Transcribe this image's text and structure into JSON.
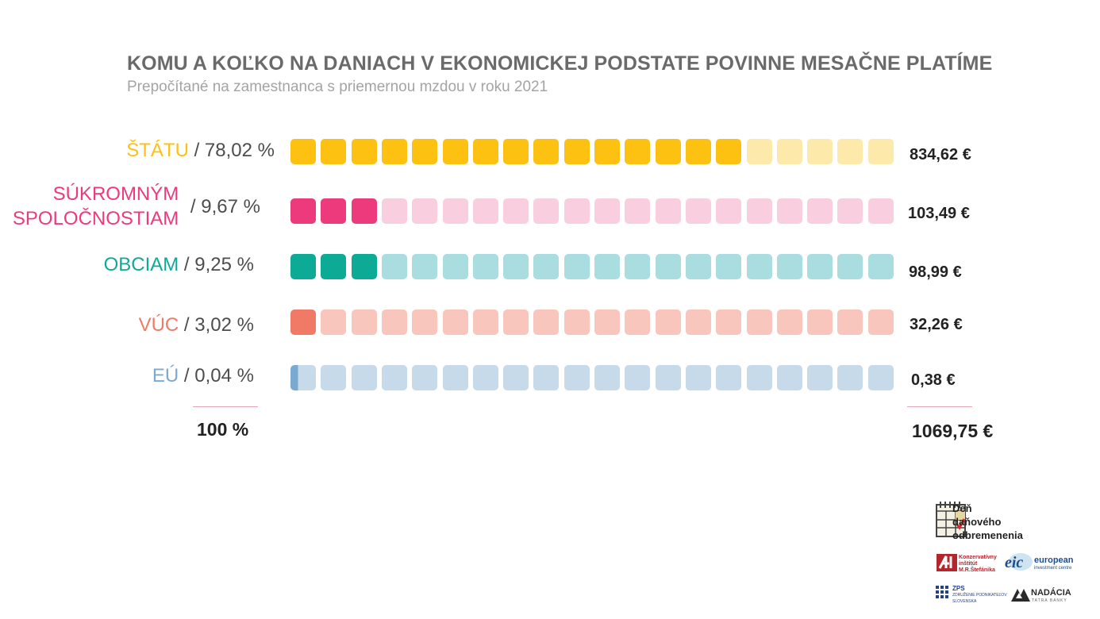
{
  "title": "KOMU A KOĽKO NA DANIACH V EKONOMICKEJ PODSTATE POVINNE MESAČNE PLATÍME",
  "subtitle": "Prepočítané na zamestnanca s priemernou mzdou v roku 2021",
  "chart_data": {
    "type": "bar",
    "title": "KOMU A KOĽKO NA DANIACH V EKONOMICKEJ PODSTATE POVINNE MESAČNE PLATÍME",
    "subtitle": "Prepočítané na zamestnanca s priemernou mzdou v roku 2021",
    "squares_per_row": 20,
    "categories": [
      "ŠTÁTU",
      "SÚKROMNÝM SPOLOČNOSTIAM",
      "OBCIAM",
      "VÚC",
      "EÚ"
    ],
    "series": [
      {
        "name": "",
        "values": [
          78.02,
          9.67,
          9.25,
          3.02,
          0.04
        ]
      },
      {
        "name": "",
        "values": [
          834.62,
          103.49,
          98.99,
          32.26,
          0.38
        ]
      }
    ],
    "rows": [
      {
        "category": "ŠTÁTU",
        "category_lines": [
          "ŠTÁTU"
        ],
        "percent_label": "/ 78,02 %",
        "percent": 78.02,
        "amount_label": "834,62 €",
        "amount": 834.62,
        "filled_squares": 15,
        "color": "#fcc111",
        "light": "#fde9a9"
      },
      {
        "category": "SÚKROMNÝM SPOLOČNOSTIAM",
        "category_lines": [
          "SÚKROMNÝM",
          "SPOLOČNOSTIAM"
        ],
        "percent_label": "/ 9,67 %",
        "percent": 9.67,
        "amount_label": "103,49 €",
        "amount": 103.49,
        "filled_squares": 3,
        "color": "#ed3a7d",
        "light": "#f9cfdf"
      },
      {
        "category": "OBCIAM",
        "category_lines": [
          "OBCIAM"
        ],
        "percent_label": "/ 9,25 %",
        "percent": 9.25,
        "amount_label": "98,99 €",
        "amount": 98.99,
        "filled_squares": 3,
        "color": "#0daa96",
        "light": "#a9dde0"
      },
      {
        "category": "VÚC",
        "category_lines": [
          "VÚC"
        ],
        "percent_label": "/ 3,02 %",
        "percent": 3.02,
        "amount_label": "32,26 €",
        "amount": 32.26,
        "filled_squares": 1,
        "color": "#f17a67",
        "light": "#f9c6bd"
      },
      {
        "category": "EÚ",
        "category_lines": [
          "EÚ"
        ],
        "percent_label": "/ 0,04 %",
        "percent": 0.04,
        "amount_label": "0,38 €",
        "amount": 0.38,
        "filled_squares": 0.3,
        "color": "#7aaad2",
        "light": "#c6daea"
      }
    ],
    "totals": {
      "percent_label": "100 %",
      "amount_label": "1069,75 €"
    },
    "legend": "none",
    "grid": false
  },
  "logos": {
    "ddo_lines": [
      "Deň",
      "daňového",
      "odbremenenia"
    ],
    "kimrs_lines": [
      "Konzervatívny",
      "inštitút",
      "M.R.Štefánika"
    ],
    "eic_main": "eic",
    "eic_lines": [
      "european",
      "investment centre"
    ],
    "zps_lines": [
      "ZPS",
      "ZDRUŽENIE PODNIKATEĽOV",
      "SLOVENSKA"
    ],
    "nadacia_main": "NADÁCIA",
    "nadacia_sub": "TATRA BANKY"
  }
}
